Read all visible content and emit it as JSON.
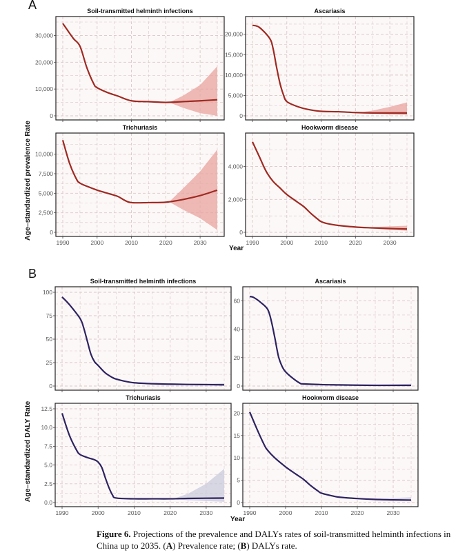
{
  "figure": {
    "panel_labels": [
      "A",
      "B"
    ],
    "x_axis_label": "Year",
    "panel_a_ylabel": "Age–standardized prevalence Rate",
    "panel_b_ylabel": "Age–standardized DALY Rate",
    "colors": {
      "prevalence_line": "#9e2a22",
      "prevalence_band": "#e8a39d",
      "daly_line": "#2e2360",
      "daly_band": "#c9cbdc",
      "panel_bg": "#fdf8f8",
      "grid": "#d8c8c8"
    }
  },
  "caption": {
    "label": "Figure 6.",
    "text_1": " Projections of the prevalence and DALYs rates of soil-transmitted helminth infections in China up to 2035. (",
    "a": "A",
    "text_2": ") Prevalence rate; (",
    "b": "B",
    "text_3": ") DALYs rate."
  },
  "chart_data": [
    {
      "type": "line",
      "panel": "A",
      "title": "Soil-transmitted helminth infections",
      "xlabel": "",
      "ylabel": "Age–standardized prevalence Rate",
      "xlim": [
        1990,
        2035
      ],
      "ylim": [
        0,
        35000
      ],
      "xticks": [
        1990,
        2000,
        2010,
        2020,
        2030
      ],
      "yticks": [
        0,
        10000,
        20000,
        30000
      ],
      "ytick_labels": [
        "0",
        "10,000",
        "20,000",
        "30,000"
      ],
      "x": [
        1990,
        1993,
        1995,
        1997,
        1999,
        2000,
        2003,
        2006,
        2010,
        2015,
        2020,
        2025,
        2030,
        2035
      ],
      "values": [
        34500,
        29000,
        26000,
        18000,
        12000,
        10500,
        8700,
        7400,
        5600,
        5300,
        5000,
        5300,
        5600,
        6000
      ],
      "forecast_start": 2021,
      "lower": [
        5000,
        3000,
        1000,
        0
      ],
      "upper": [
        5000,
        7500,
        11500,
        18500
      ],
      "band_x": [
        2021,
        2025,
        2030,
        2035
      ]
    },
    {
      "type": "line",
      "panel": "A",
      "title": "Ascariasis",
      "xlim": [
        1990,
        2035
      ],
      "ylim": [
        0,
        23000
      ],
      "xticks": [
        1990,
        2000,
        2010,
        2020,
        2030
      ],
      "yticks": [
        0,
        5000,
        10000,
        15000,
        20000
      ],
      "ytick_labels": [
        "0",
        "5,000",
        "10,000",
        "15,000",
        "20,000"
      ],
      "x": [
        1990,
        1992,
        1995,
        1996,
        1997,
        1998,
        1999,
        2000,
        2003,
        2006,
        2010,
        2015,
        2020,
        2025,
        2030,
        2035
      ],
      "values": [
        22200,
        21700,
        19000,
        16500,
        12000,
        8000,
        5200,
        3500,
        2300,
        1600,
        1100,
        1000,
        800,
        700,
        700,
        700
      ],
      "forecast_start": 2021,
      "lower": [
        800,
        500,
        300,
        200
      ],
      "upper": [
        800,
        1300,
        2200,
        3300
      ],
      "band_x": [
        2021,
        2025,
        2030,
        2035
      ]
    },
    {
      "type": "line",
      "panel": "A",
      "title": "Trichuriasis",
      "xlim": [
        1990,
        2035
      ],
      "ylim": [
        0,
        12000
      ],
      "xticks": [
        1990,
        2000,
        2010,
        2020,
        2030
      ],
      "yticks": [
        0,
        2500,
        5000,
        7500,
        10000
      ],
      "ytick_labels": [
        "0",
        "2,500",
        "5,000",
        "7,500",
        "10,000"
      ],
      "x": [
        1990,
        1992,
        1994,
        1995,
        1997,
        2000,
        2003,
        2006,
        2008,
        2010,
        2015,
        2020,
        2025,
        2030,
        2035
      ],
      "values": [
        11800,
        8800,
        6800,
        6300,
        5900,
        5400,
        5000,
        4600,
        4100,
        3800,
        3800,
        3850,
        4200,
        4700,
        5400
      ],
      "forecast_start": 2021,
      "lower": [
        3900,
        2900,
        1800,
        300
      ],
      "upper": [
        3900,
        5600,
        7800,
        10600
      ],
      "band_x": [
        2021,
        2025,
        2030,
        2035
      ]
    },
    {
      "type": "line",
      "panel": "A",
      "title": "Hookworm disease",
      "xlim": [
        1990,
        2035
      ],
      "ylim": [
        0,
        5700
      ],
      "xticks": [
        1990,
        2000,
        2010,
        2020,
        2030
      ],
      "yticks": [
        0,
        2000,
        4000
      ],
      "ytick_labels": [
        "0",
        "2,000",
        "4,000"
      ],
      "x": [
        1990,
        1992,
        1994,
        1996,
        1998,
        2000,
        2003,
        2005,
        2007,
        2009,
        2010,
        2012,
        2015,
        2020,
        2025,
        2030,
        2035
      ],
      "values": [
        5500,
        4600,
        3700,
        3100,
        2700,
        2300,
        1850,
        1550,
        1150,
        800,
        650,
        520,
        420,
        320,
        270,
        230,
        200
      ],
      "forecast_start": 2021,
      "lower": [
        300,
        220,
        150,
        100
      ],
      "upper": [
        300,
        320,
        360,
        400
      ],
      "band_x": [
        2021,
        2025,
        2030,
        2035
      ]
    },
    {
      "type": "line",
      "panel": "B",
      "title": "Soil-transmitted helminth infections",
      "xlabel": "Year",
      "ylabel": "Age–standardized DALY Rate",
      "xlim": [
        1990,
        2035
      ],
      "ylim": [
        0,
        100
      ],
      "xticks": [
        1990,
        2000,
        2010,
        2020,
        2030
      ],
      "yticks": [
        0,
        25,
        50,
        75,
        100
      ],
      "ytick_labels": [
        "0",
        "25",
        "50",
        "75",
        "100"
      ],
      "x": [
        1990,
        1992,
        1995,
        1996,
        1997,
        1998,
        1999,
        2000,
        2002,
        2004,
        2005,
        2007,
        2010,
        2015,
        2020,
        2025,
        2030,
        2035
      ],
      "values": [
        95,
        87,
        72,
        62,
        48,
        34,
        26,
        22,
        14,
        9,
        7.5,
        5.5,
        3.5,
        2.5,
        2,
        1.7,
        1.5,
        1.3
      ],
      "forecast_start": 2021,
      "lower": [
        2,
        1.3,
        0.8,
        0.5
      ],
      "upper": [
        2,
        2.2,
        2.6,
        3.0
      ],
      "band_x": [
        2021,
        2025,
        2030,
        2035
      ]
    },
    {
      "type": "line",
      "panel": "B",
      "title": "Ascariasis",
      "xlim": [
        1990,
        2035
      ],
      "ylim": [
        0,
        66
      ],
      "xticks": [
        1990,
        2000,
        2010,
        2020,
        2030
      ],
      "yticks": [
        0,
        20,
        40,
        60
      ],
      "ytick_labels": [
        "0",
        "20",
        "40",
        "60"
      ],
      "x": [
        1990,
        1991,
        1993,
        1995,
        1996,
        1997,
        1998,
        1999,
        2000,
        2002,
        2004,
        2005,
        2010,
        2015,
        2020,
        2025,
        2030,
        2035
      ],
      "values": [
        63,
        62.5,
        59,
        54,
        46,
        34,
        21,
        14,
        10,
        5.5,
        2,
        1.5,
        1,
        0.8,
        0.6,
        0.5,
        0.5,
        0.5
      ],
      "forecast_start": 2021,
      "lower": [
        0.6,
        0.4,
        0.3,
        0.2
      ],
      "upper": [
        0.6,
        0.9,
        1.2,
        1.6
      ],
      "band_x": [
        2021,
        2025,
        2030,
        2035
      ]
    },
    {
      "type": "line",
      "panel": "B",
      "title": "Trichuriasis",
      "xlim": [
        1990,
        2035
      ],
      "ylim": [
        0,
        12.5
      ],
      "xticks": [
        1990,
        2000,
        2010,
        2020,
        2030
      ],
      "yticks": [
        0,
        2.5,
        5.0,
        7.5,
        10.0,
        12.5
      ],
      "ytick_labels": [
        "0.0",
        "2.5",
        "5.0",
        "7.5",
        "10.0",
        "12.5"
      ],
      "x": [
        1990,
        1992,
        1994,
        1995,
        1997,
        1999,
        2000,
        2001,
        2002,
        2003,
        2004,
        2005,
        2010,
        2015,
        2020,
        2025,
        2030,
        2035
      ],
      "values": [
        11.9,
        9.0,
        7.0,
        6.4,
        6.0,
        5.7,
        5.4,
        4.7,
        3.3,
        2.0,
        1.0,
        0.6,
        0.5,
        0.5,
        0.5,
        0.55,
        0.58,
        0.6
      ],
      "forecast_start": 2021,
      "lower": [
        0.5,
        0.3,
        0.2,
        0.1
      ],
      "upper": [
        0.5,
        1.2,
        2.5,
        4.5
      ],
      "band_x": [
        2021,
        2025,
        2030,
        2035
      ]
    },
    {
      "type": "line",
      "panel": "B",
      "title": "Hookworm disease",
      "xlim": [
        1990,
        2035
      ],
      "ylim": [
        0,
        21
      ],
      "xticks": [
        1990,
        2000,
        2010,
        2020,
        2030
      ],
      "yticks": [
        0,
        5,
        10,
        15,
        20
      ],
      "ytick_labels": [
        "0",
        "5",
        "10",
        "15",
        "20"
      ],
      "x": [
        1990,
        1992,
        1994,
        1995,
        1997,
        2000,
        2003,
        2005,
        2007,
        2009,
        2010,
        2013,
        2015,
        2020,
        2025,
        2030,
        2035
      ],
      "values": [
        20.3,
        16.5,
        13,
        11.7,
        10,
        8,
        6.3,
        5.2,
        3.8,
        2.6,
        2.1,
        1.5,
        1.2,
        0.9,
        0.7,
        0.6,
        0.55
      ],
      "forecast_start": 2021,
      "lower": [
        0.9,
        0.6,
        0.4,
        0.3
      ],
      "upper": [
        0.9,
        0.9,
        1.0,
        1.2
      ],
      "band_x": [
        2021,
        2025,
        2030,
        2035
      ]
    }
  ]
}
